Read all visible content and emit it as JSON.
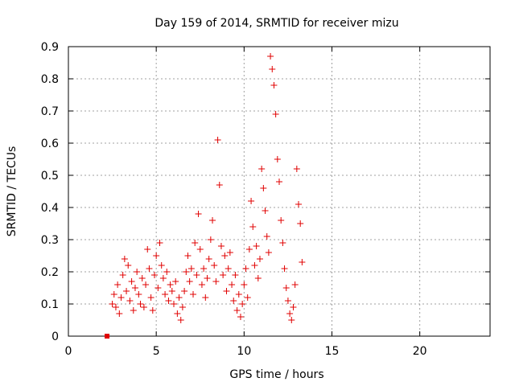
{
  "chart_data": {
    "type": "scatter",
    "title": "Day 159 of 2014, SRMTID for receiver mizu",
    "xlabel": "GPS time / hours",
    "ylabel": "SRMTID / TECUs",
    "xlim": [
      0,
      24
    ],
    "ylim": [
      0,
      0.9
    ],
    "xticks": [
      "0",
      "5",
      "10",
      "15",
      "20"
    ],
    "xtick_values": [
      0,
      5,
      10,
      15,
      20
    ],
    "yticks": [
      "0",
      "0.1",
      "0.2",
      "0.3",
      "0.4",
      "0.5",
      "0.6",
      "0.7",
      "0.8",
      "0.9"
    ],
    "ytick_values": [
      0,
      0.1,
      0.2,
      0.3,
      0.4,
      0.5,
      0.6,
      0.7,
      0.8,
      0.9
    ],
    "grid": true,
    "marker_color": "#e00000",
    "series": [
      {
        "name": "SRMTID",
        "marker": "plus",
        "points": [
          [
            2.5,
            0.1
          ],
          [
            2.6,
            0.13
          ],
          [
            2.7,
            0.09
          ],
          [
            2.8,
            0.16
          ],
          [
            2.9,
            0.07
          ],
          [
            3.0,
            0.12
          ],
          [
            3.1,
            0.19
          ],
          [
            3.2,
            0.24
          ],
          [
            3.3,
            0.14
          ],
          [
            3.4,
            0.22
          ],
          [
            3.5,
            0.11
          ],
          [
            3.6,
            0.17
          ],
          [
            3.7,
            0.08
          ],
          [
            3.8,
            0.15
          ],
          [
            3.9,
            0.2
          ],
          [
            4.0,
            0.13
          ],
          [
            4.1,
            0.1
          ],
          [
            4.2,
            0.18
          ],
          [
            4.3,
            0.09
          ],
          [
            4.4,
            0.16
          ],
          [
            4.5,
            0.27
          ],
          [
            4.6,
            0.21
          ],
          [
            4.7,
            0.12
          ],
          [
            4.8,
            0.08
          ],
          [
            4.9,
            0.19
          ],
          [
            5.0,
            0.25
          ],
          [
            5.1,
            0.15
          ],
          [
            5.2,
            0.29
          ],
          [
            5.3,
            0.22
          ],
          [
            5.4,
            0.18
          ],
          [
            5.5,
            0.13
          ],
          [
            5.6,
            0.2
          ],
          [
            5.7,
            0.11
          ],
          [
            5.8,
            0.16
          ],
          [
            5.9,
            0.14
          ],
          [
            6.0,
            0.1
          ],
          [
            6.1,
            0.17
          ],
          [
            6.2,
            0.07
          ],
          [
            6.3,
            0.12
          ],
          [
            6.4,
            0.05
          ],
          [
            6.5,
            0.09
          ],
          [
            6.6,
            0.14
          ],
          [
            6.7,
            0.2
          ],
          [
            6.8,
            0.25
          ],
          [
            6.9,
            0.17
          ],
          [
            7.0,
            0.21
          ],
          [
            7.1,
            0.13
          ],
          [
            7.2,
            0.29
          ],
          [
            7.3,
            0.19
          ],
          [
            7.4,
            0.38
          ],
          [
            7.5,
            0.27
          ],
          [
            7.6,
            0.16
          ],
          [
            7.7,
            0.21
          ],
          [
            7.8,
            0.12
          ],
          [
            7.9,
            0.18
          ],
          [
            8.0,
            0.24
          ],
          [
            8.1,
            0.3
          ],
          [
            8.2,
            0.36
          ],
          [
            8.3,
            0.22
          ],
          [
            8.4,
            0.17
          ],
          [
            8.5,
            0.61
          ],
          [
            8.6,
            0.47
          ],
          [
            8.7,
            0.28
          ],
          [
            8.8,
            0.19
          ],
          [
            8.9,
            0.25
          ],
          [
            9.0,
            0.14
          ],
          [
            9.1,
            0.21
          ],
          [
            9.2,
            0.26
          ],
          [
            9.3,
            0.16
          ],
          [
            9.4,
            0.11
          ],
          [
            9.5,
            0.19
          ],
          [
            9.6,
            0.08
          ],
          [
            9.7,
            0.13
          ],
          [
            9.8,
            0.06
          ],
          [
            9.9,
            0.1
          ],
          [
            10.0,
            0.16
          ],
          [
            10.1,
            0.21
          ],
          [
            10.2,
            0.12
          ],
          [
            10.3,
            0.27
          ],
          [
            10.4,
            0.42
          ],
          [
            10.5,
            0.34
          ],
          [
            10.6,
            0.22
          ],
          [
            10.7,
            0.28
          ],
          [
            10.8,
            0.18
          ],
          [
            10.9,
            0.24
          ],
          [
            11.0,
            0.52
          ],
          [
            11.1,
            0.46
          ],
          [
            11.2,
            0.39
          ],
          [
            11.3,
            0.31
          ],
          [
            11.4,
            0.26
          ],
          [
            11.5,
            0.87
          ],
          [
            11.6,
            0.83
          ],
          [
            11.7,
            0.78
          ],
          [
            11.8,
            0.69
          ],
          [
            11.9,
            0.55
          ],
          [
            12.0,
            0.48
          ],
          [
            12.1,
            0.36
          ],
          [
            12.2,
            0.29
          ],
          [
            12.3,
            0.21
          ],
          [
            12.4,
            0.15
          ],
          [
            12.5,
            0.11
          ],
          [
            12.6,
            0.07
          ],
          [
            12.7,
            0.05
          ],
          [
            12.8,
            0.09
          ],
          [
            12.9,
            0.16
          ],
          [
            13.0,
            0.52
          ],
          [
            13.1,
            0.41
          ],
          [
            13.2,
            0.35
          ],
          [
            13.3,
            0.23
          ]
        ]
      },
      {
        "name": "start marker",
        "marker": "square",
        "points": [
          [
            2.2,
            0.0
          ]
        ]
      }
    ]
  }
}
